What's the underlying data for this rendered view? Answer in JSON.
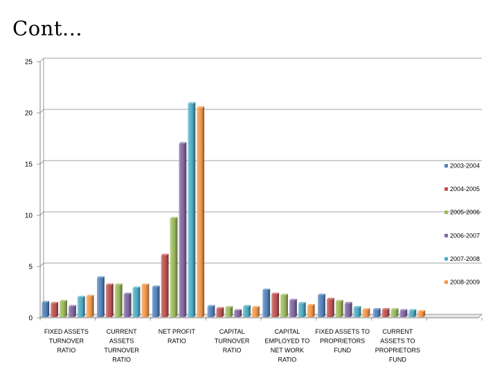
{
  "page": {
    "title": "Cont..."
  },
  "chart_data": {
    "type": "bar",
    "title": "",
    "xlabel": "",
    "ylabel": "",
    "ylim": [
      0,
      25
    ],
    "yticks": [
      0,
      5,
      10,
      15,
      20,
      25
    ],
    "grid": true,
    "legend_position": "right",
    "categories": [
      [
        "FIXED ASSETS",
        "TURNOVER",
        "RATIO"
      ],
      [
        "CURRENT",
        "ASSETS",
        "TURNOVER",
        "RATIO"
      ],
      [
        "NET PROFIT",
        "RATIO"
      ],
      [
        "CAPITAL",
        "TURNOVER",
        "RATIO"
      ],
      [
        "CAPITAL",
        "EMPLOYED TO",
        "NET WORK",
        "RATIO"
      ],
      [
        "FIXED ASSETS TO",
        "PROPRIETORS",
        "FUND"
      ],
      [
        "CURRENT",
        "ASSETS TO",
        "PROPRIETORS",
        "FUND"
      ],
      []
    ],
    "series": [
      {
        "name": "2003-2004",
        "color": "#4f81bd",
        "values": [
          1.5,
          3.9,
          3.0,
          1.1,
          2.7,
          2.2,
          0.8,
          null
        ]
      },
      {
        "name": "2004-2005",
        "color": "#c0504d",
        "values": [
          1.4,
          3.2,
          6.1,
          0.9,
          2.3,
          1.8,
          0.8,
          null
        ]
      },
      {
        "name": "2005-2006",
        "color": "#9bbb59",
        "values": [
          1.6,
          3.2,
          9.7,
          1.0,
          2.2,
          1.6,
          0.8,
          null
        ]
      },
      {
        "name": "2006-2007",
        "color": "#8064a2",
        "values": [
          1.1,
          2.3,
          17.0,
          0.7,
          1.7,
          1.4,
          0.7,
          null
        ]
      },
      {
        "name": "2007-2008",
        "color": "#4bacc6",
        "values": [
          2.0,
          2.9,
          20.9,
          1.1,
          1.4,
          1.0,
          0.7,
          null
        ]
      },
      {
        "name": "2008-2009",
        "color": "#f79646",
        "values": [
          2.1,
          3.2,
          20.5,
          1.0,
          1.2,
          0.8,
          0.6,
          null
        ]
      }
    ]
  }
}
